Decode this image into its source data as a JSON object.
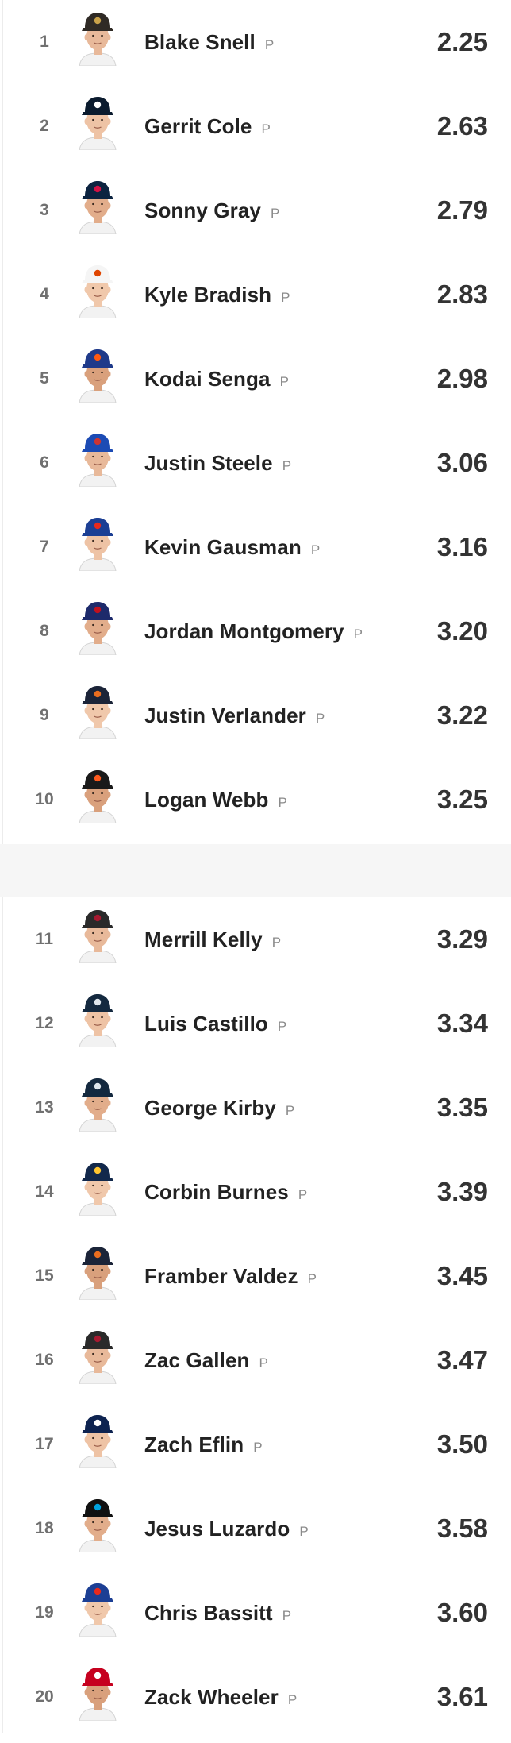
{
  "leaderboard": {
    "groups": [
      {
        "players": [
          {
            "rank": "1",
            "name": "Blake Snell",
            "position": "P",
            "stat": "2.25",
            "cap_color": "#2f2a25",
            "logo_color": "#c9a24a"
          },
          {
            "rank": "2",
            "name": "Gerrit Cole",
            "position": "P",
            "stat": "2.63",
            "cap_color": "#0b1b2e",
            "logo_color": "#ffffff"
          },
          {
            "rank": "3",
            "name": "Sonny Gray",
            "position": "P",
            "stat": "2.79",
            "cap_color": "#0c2340",
            "logo_color": "#d31145"
          },
          {
            "rank": "4",
            "name": "Kyle Bradish",
            "position": "P",
            "stat": "2.83",
            "cap_color": "#f5f5f5",
            "logo_color": "#df4601"
          },
          {
            "rank": "5",
            "name": "Kodai Senga",
            "position": "P",
            "stat": "2.98",
            "cap_color": "#1f3a8a",
            "logo_color": "#ff5910"
          },
          {
            "rank": "6",
            "name": "Justin Steele",
            "position": "P",
            "stat": "3.06",
            "cap_color": "#1c4bb4",
            "logo_color": "#cc3433"
          },
          {
            "rank": "7",
            "name": "Kevin Gausman",
            "position": "P",
            "stat": "3.16",
            "cap_color": "#1c3f94",
            "logo_color": "#e8291c"
          },
          {
            "rank": "8",
            "name": "Jordan Montgomery",
            "position": "P",
            "stat": "3.20",
            "cap_color": "#1d2a6b",
            "logo_color": "#c0111f"
          },
          {
            "rank": "9",
            "name": "Justin Verlander",
            "position": "P",
            "stat": "3.22",
            "cap_color": "#1b2438",
            "logo_color": "#eb6e1f"
          },
          {
            "rank": "10",
            "name": "Logan Webb",
            "position": "P",
            "stat": "3.25",
            "cap_color": "#1a1a1a",
            "logo_color": "#fd5a1e"
          }
        ]
      },
      {
        "players": [
          {
            "rank": "11",
            "name": "Merrill Kelly",
            "position": "P",
            "stat": "3.29",
            "cap_color": "#2a2a2a",
            "logo_color": "#a71930"
          },
          {
            "rank": "12",
            "name": "Luis Castillo",
            "position": "P",
            "stat": "3.34",
            "cap_color": "#14293f",
            "logo_color": "#dfe6ec"
          },
          {
            "rank": "13",
            "name": "George Kirby",
            "position": "P",
            "stat": "3.35",
            "cap_color": "#14293f",
            "logo_color": "#dfe6ec"
          },
          {
            "rank": "14",
            "name": "Corbin Burnes",
            "position": "P",
            "stat": "3.39",
            "cap_color": "#12284b",
            "logo_color": "#ffc52f"
          },
          {
            "rank": "15",
            "name": "Framber Valdez",
            "position": "P",
            "stat": "3.45",
            "cap_color": "#1b2438",
            "logo_color": "#eb6e1f"
          },
          {
            "rank": "16",
            "name": "Zac Gallen",
            "position": "P",
            "stat": "3.47",
            "cap_color": "#2a2a2a",
            "logo_color": "#a71930"
          },
          {
            "rank": "17",
            "name": "Zach Eflin",
            "position": "P",
            "stat": "3.50",
            "cap_color": "#0e2350",
            "logo_color": "#ffffff"
          },
          {
            "rank": "18",
            "name": "Jesus Luzardo",
            "position": "P",
            "stat": "3.58",
            "cap_color": "#111111",
            "logo_color": "#00a3e0"
          },
          {
            "rank": "19",
            "name": "Chris Bassitt",
            "position": "P",
            "stat": "3.60",
            "cap_color": "#1c3f94",
            "logo_color": "#e8291c"
          },
          {
            "rank": "20",
            "name": "Zack Wheeler",
            "position": "P",
            "stat": "3.61",
            "cap_color": "#c6011f",
            "logo_color": "#ffffff"
          }
        ]
      }
    ]
  }
}
